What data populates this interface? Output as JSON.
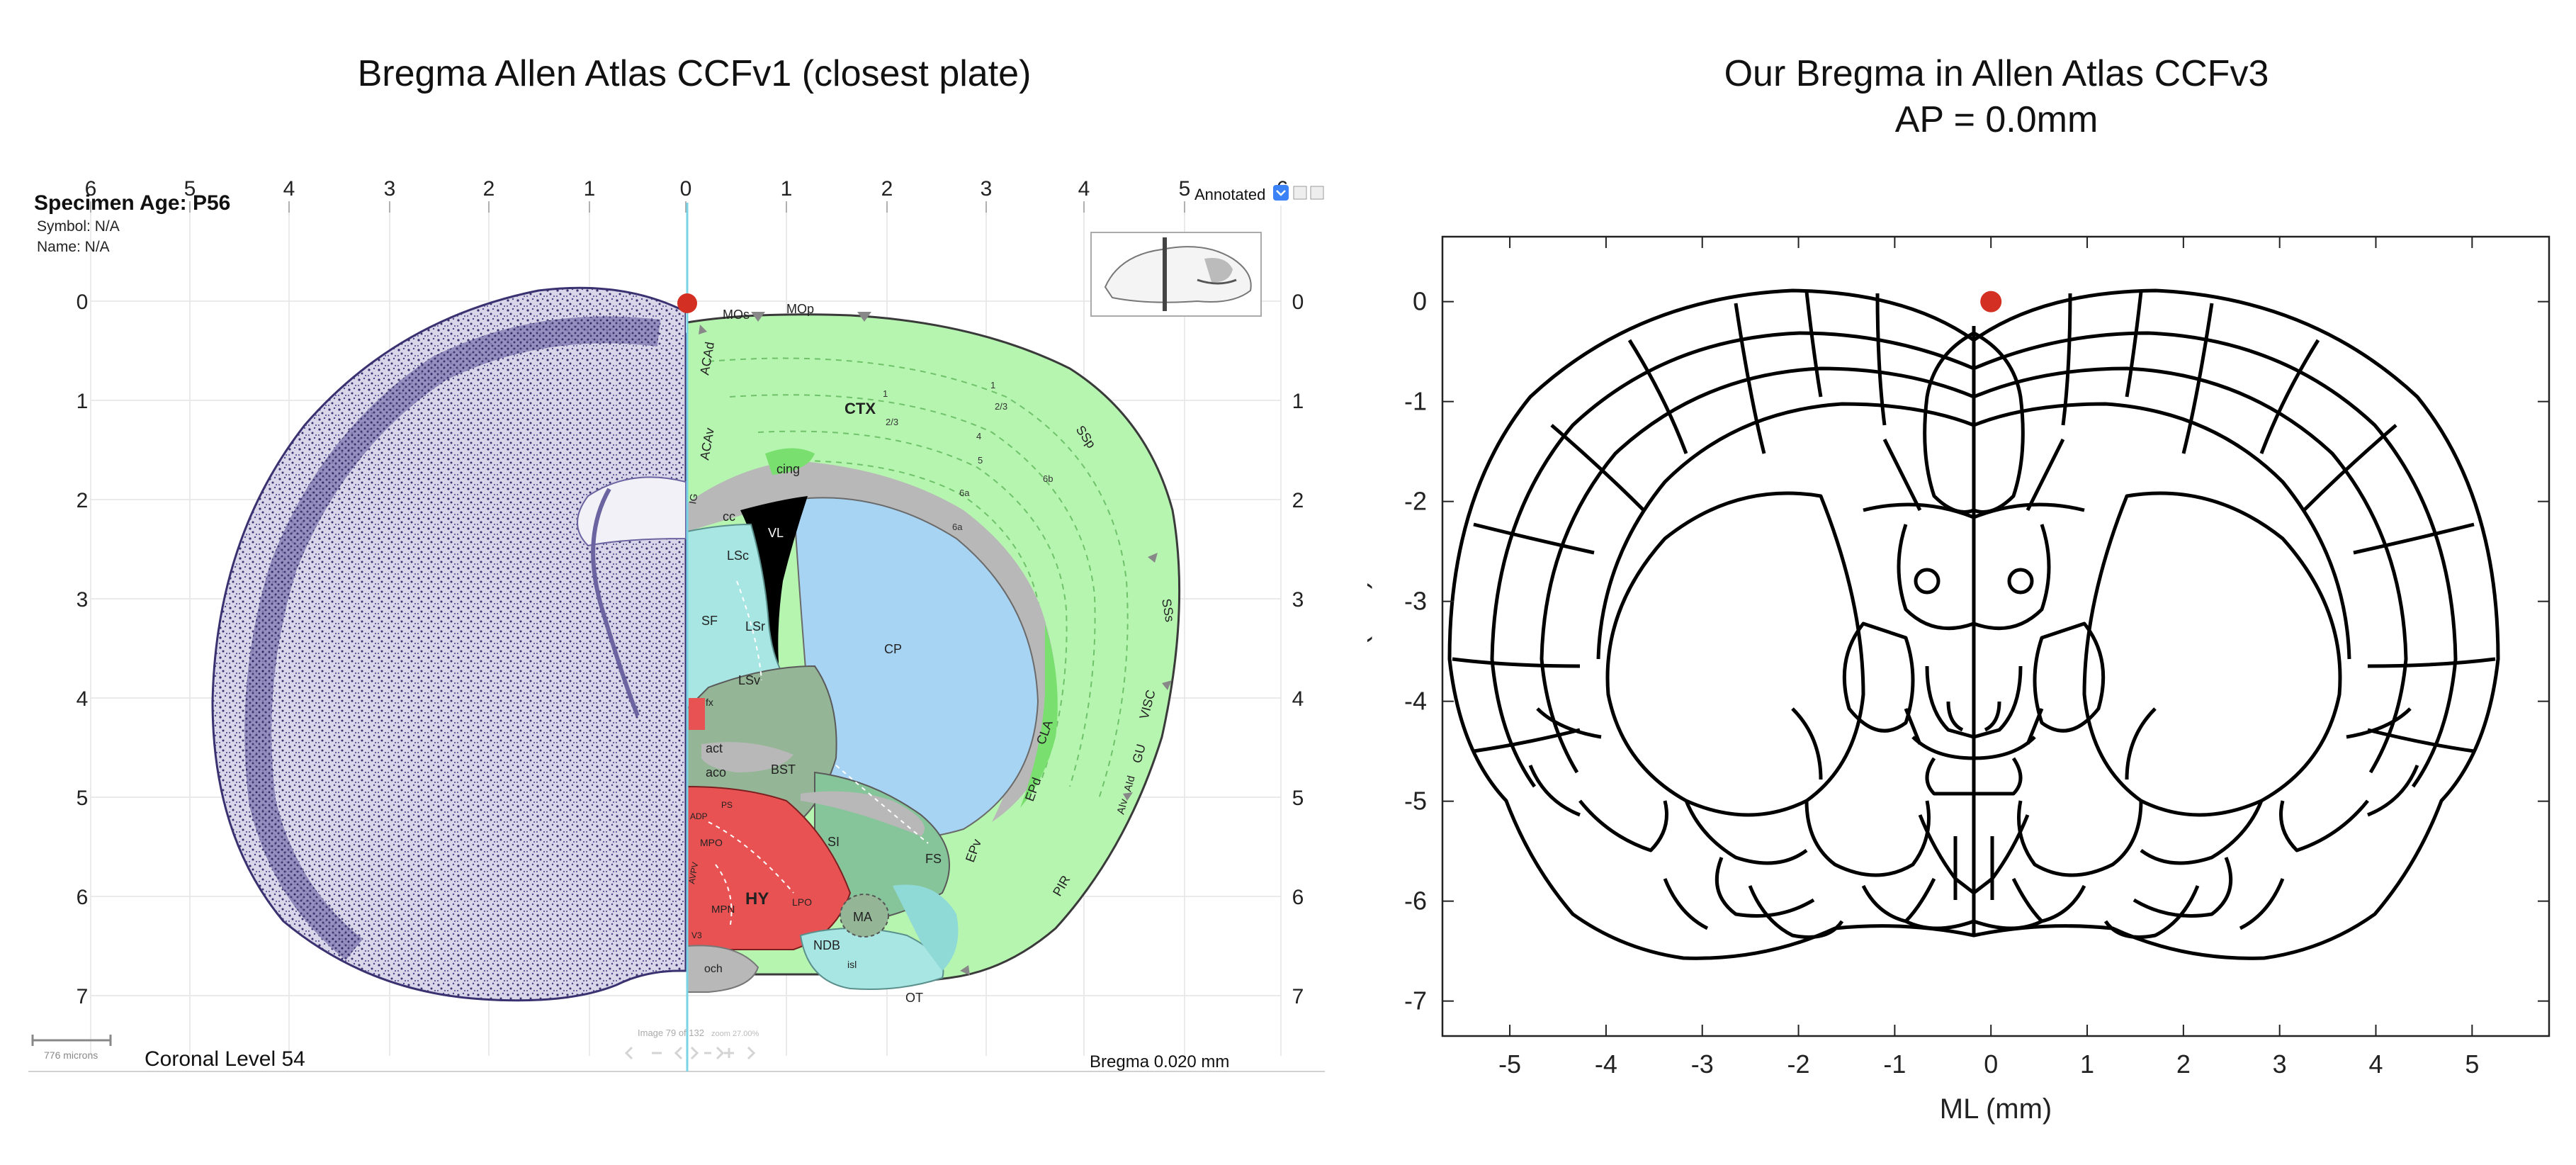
{
  "left_panel": {
    "title": "Bregma Allen Atlas CCFv1 (closest plate)",
    "specimen_age": "Specimen Age: P56",
    "symbol": "Symbol:  N/A",
    "name": "Name:   N/A",
    "annotated_label": "Annotated",
    "coronal_level": "Coronal Level 54",
    "bregma_readout": "Bregma 0.020 mm",
    "scale_bar": "776 microns",
    "image_counter": "Image 79 of 132",
    "zoom_readout": "zoom 27.00%",
    "top_ticks": [
      "6",
      "5",
      "4",
      "3",
      "2",
      "1",
      "0",
      "1",
      "2",
      "3",
      "4",
      "5",
      "6"
    ],
    "side_ticks": [
      "0",
      "1",
      "2",
      "3",
      "4",
      "5",
      "6",
      "7"
    ],
    "region_labels": [
      "MOs",
      "MOp",
      "ACAd",
      "ACAv",
      "CTX",
      "SSp",
      "SSs",
      "VISC",
      "GU",
      "AId",
      "AIv",
      "PIR",
      "cing",
      "cc",
      "VL",
      "LSc",
      "LSr",
      "LSv",
      "SF",
      "fx",
      "CP",
      "CLA",
      "EPd",
      "EPv",
      "BST",
      "act",
      "aco",
      "SI",
      "FS",
      "MA",
      "NDB",
      "isl",
      "OT",
      "och",
      "HY",
      "LPO",
      "MPN",
      "MPO",
      "ADP",
      "AVPV",
      "PS",
      "V3",
      "IG"
    ],
    "colors": {
      "cortex": "#b6f5b0",
      "striatum": "#a8d4f3",
      "septum": "#a7e6e3",
      "hypothalamus": "#e85252",
      "pallidum": "#94b596",
      "fiber": "#b8b8b8",
      "ventricle": "#000000",
      "nissl": "#3a3270",
      "midline": "#7ad4e6",
      "marker": "#d32f22"
    }
  },
  "right_panel": {
    "title_line1": "Our Bregma in Allen Atlas CCFv3",
    "title_line2": "AP = 0.0mm",
    "chart_data": {
      "type": "scatter",
      "title": "Our Bregma in Allen Atlas CCFv3\nAP = 0.0mm",
      "xlabel": "ML (mm)",
      "ylabel": "DV (mm)",
      "xlim": [
        -5.7,
        5.8
      ],
      "ylim": [
        -7.35,
        0.65
      ],
      "xticks": [
        -5,
        -4,
        -3,
        -2,
        -1,
        0,
        1,
        2,
        3,
        4,
        5
      ],
      "yticks": [
        0,
        -1,
        -2,
        -3,
        -4,
        -5,
        -6,
        -7
      ],
      "points": [
        {
          "x": 0.0,
          "y": 0.0,
          "color": "#d32f22"
        }
      ],
      "grid": false
    }
  }
}
